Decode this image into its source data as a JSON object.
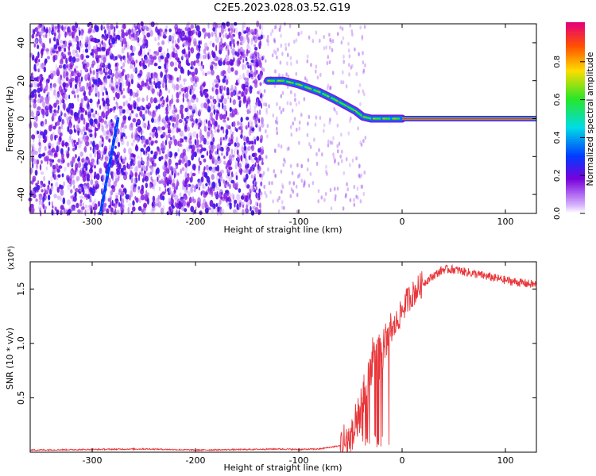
{
  "figure_title": "C2E5.2023.028.03.52.G19",
  "chart_data": [
    {
      "type": "heatmap",
      "xlabel": "Height of straight line (km)",
      "ylabel": "Frequency (Hz)",
      "xlim": [
        -360,
        130
      ],
      "ylim": [
        -50,
        50
      ],
      "xticks": [
        -300,
        -200,
        -100,
        0,
        100
      ],
      "yticks": [
        -40,
        -20,
        0,
        20,
        40
      ],
      "colorbar": {
        "label": "Normalized spectral amplitude",
        "range": [
          0,
          1
        ],
        "ticks": [
          0.0,
          0.2,
          0.4,
          0.6,
          0.8
        ]
      },
      "features": [
        {
          "desc": "diagonal streak",
          "x": [
            -292,
            -275
          ],
          "y": [
            -50,
            0
          ]
        },
        {
          "desc": "curved signal",
          "x": [
            -130,
            -115,
            -100,
            -80,
            -65,
            -55,
            -45,
            -38,
            -30,
            0
          ],
          "y": [
            20,
            20,
            18,
            14,
            10,
            7,
            4,
            1,
            0,
            0
          ]
        },
        {
          "desc": "flat carrier line",
          "x": [
            0,
            130
          ],
          "y": [
            0,
            0
          ]
        }
      ]
    },
    {
      "type": "line",
      "xlabel": "Height of straight line (km)",
      "ylabel": "SNR (10 * v/v)",
      "multiplier": "(x10⁴)",
      "xlim": [
        -360,
        130
      ],
      "ylim": [
        0,
        1.75
      ],
      "xticks": [
        -300,
        -200,
        -100,
        0,
        100
      ],
      "yticks": [
        0.5,
        1.0,
        1.5
      ],
      "color": "#e8363a",
      "series": [
        {
          "x": [
            -360,
            -300,
            -250,
            -200,
            -150,
            -120,
            -100,
            -80,
            -60,
            -50,
            -45,
            -40,
            -35,
            -30,
            -25,
            -20,
            -15,
            -10,
            -5,
            0,
            5,
            10,
            20,
            30,
            40,
            50,
            60,
            80,
            100,
            120,
            130
          ],
          "y": [
            0.02,
            0.025,
            0.03,
            0.02,
            0.025,
            0.03,
            0.025,
            0.03,
            0.06,
            0.12,
            0.2,
            0.35,
            0.6,
            0.8,
            0.9,
            0.85,
            1.0,
            1.1,
            1.2,
            1.3,
            1.4,
            1.45,
            1.55,
            1.62,
            1.68,
            1.68,
            1.66,
            1.62,
            1.58,
            1.55,
            1.54
          ]
        }
      ]
    }
  ]
}
